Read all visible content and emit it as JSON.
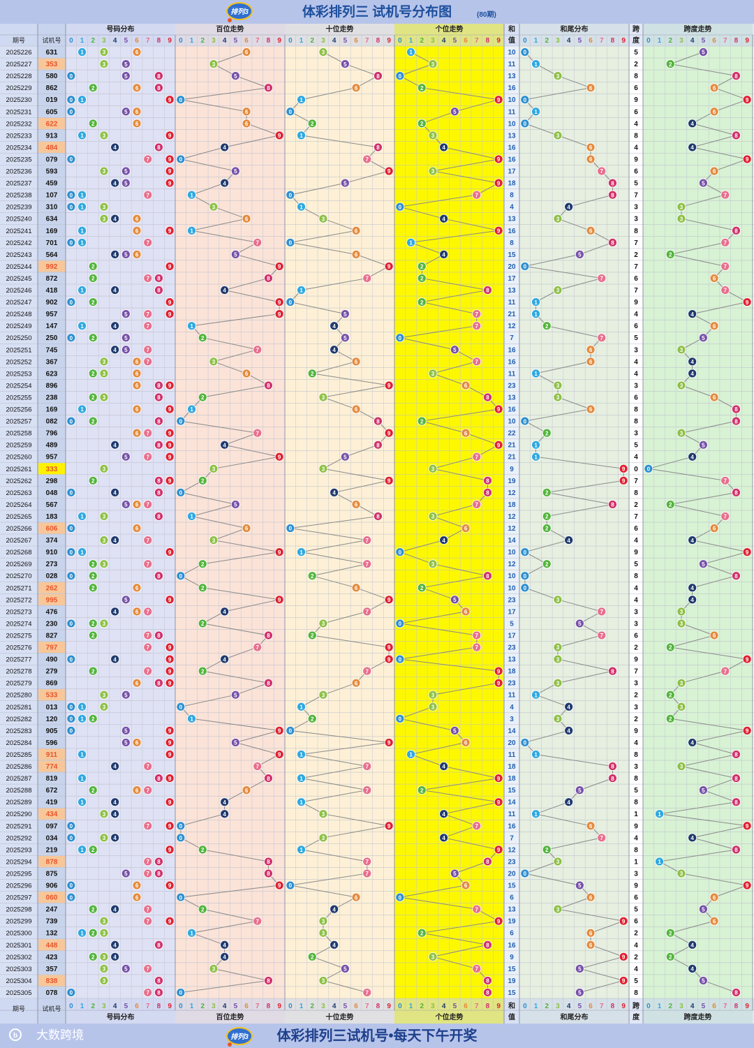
{
  "title": "体彩排列三 试机号分布图",
  "title_badge": "(80期)",
  "logo_text": "排列3",
  "footer_brand": "大数跨境",
  "footer_text": "体彩排列三试机号•每天下午开奖",
  "headers": {
    "period": "期号",
    "trial": "试机号",
    "dist": "号码分布",
    "hundreds": "百位走势",
    "tens": "十位走势",
    "units": "个位走势",
    "sum_top": "和",
    "sum_bottom": "值",
    "sumtail": "和尾分布",
    "span_top": "跨",
    "span_bottom": "度",
    "spantrend": "跨度走势"
  },
  "digits": [
    "0",
    "1",
    "2",
    "3",
    "4",
    "5",
    "6",
    "7",
    "8",
    "9"
  ],
  "colors": {
    "digit": [
      "#2d8fd0",
      "#2ea8e0",
      "#52b43c",
      "#8dc044",
      "#1f3a6e",
      "#7650a8",
      "#e48a3c",
      "#e86e8c",
      "#d0306a",
      "#e02030"
    ],
    "bg_period": "#d8e0f4",
    "bg_trial": "#c8d4ec",
    "bg_dist": "#dfe1f4",
    "bg_hundreds": "#fbe3d8",
    "bg_tens": "#fdf0d6",
    "bg_units": "#fdf800",
    "bg_sum": "#eaf0f8",
    "bg_sumtail": "#e6efe0",
    "bg_span": "#ffffff",
    "bg_spantrend": "#d8f2d4",
    "header_bg": "#c9d3ee",
    "title_color": "#1d4f9c",
    "highlight_orange": "#f7c79a",
    "highlight_yellow": "#fff200"
  },
  "periods": [
    "2025226",
    "2025227",
    "2025228",
    "2025229",
    "2025230",
    "2025231",
    "2025232",
    "2025233",
    "2025234",
    "2025235",
    "2025236",
    "2025237",
    "2025238",
    "2025239",
    "2025240",
    "2025241",
    "2025242",
    "2025243",
    "2025244",
    "2025245",
    "2025246",
    "2025247",
    "2025248",
    "2025249",
    "2025250",
    "2025251",
    "2025252",
    "2025253",
    "2025254",
    "2025255",
    "2025256",
    "2025257",
    "2025258",
    "2025259",
    "2025260",
    "2025261",
    "2025262",
    "2025263",
    "2025264",
    "2025265",
    "2025266",
    "2025267",
    "2025268",
    "2025269",
    "2025270",
    "2025271",
    "2025272",
    "2025273",
    "2025274",
    "2025275",
    "2025276",
    "2025277",
    "2025278",
    "2025279",
    "2025280",
    "2025281",
    "2025282",
    "2025283",
    "2025284",
    "2025285",
    "2025286",
    "2025287",
    "2025288",
    "2025289",
    "2025290",
    "2025291",
    "2025292",
    "2025293",
    "2025294",
    "2025295",
    "2025296",
    "2025297",
    "2025298",
    "2025299",
    "2025300",
    "2025301",
    "2025302",
    "2025303",
    "2025304",
    "2025305"
  ],
  "trials": [
    "631",
    "353",
    "580",
    "862",
    "019",
    "605",
    "622",
    "913",
    "484",
    "079",
    "593",
    "459",
    "107",
    "310",
    "634",
    "169",
    "701",
    "564",
    "992",
    "872",
    "418",
    "902",
    "957",
    "147",
    "250",
    "745",
    "367",
    "623",
    "896",
    "238",
    "169",
    "082",
    "796",
    "489",
    "957",
    "333",
    "298",
    "048",
    "567",
    "183",
    "606",
    "374",
    "910",
    "273",
    "028",
    "262",
    "995",
    "476",
    "230",
    "827",
    "797",
    "490",
    "279",
    "869",
    "533",
    "013",
    "120",
    "905",
    "596",
    "911",
    "774",
    "819",
    "672",
    "419",
    "434",
    "097",
    "034",
    "219",
    "878",
    "875",
    "906",
    "060",
    "247",
    "739",
    "132",
    "448",
    "423",
    "357",
    "838",
    "078"
  ],
  "chart_data": {
    "type": "table",
    "title": "体彩排列三 试机号分布图",
    "columns": [
      "期号",
      "试机号",
      "号码分布",
      "百位走势",
      "十位走势",
      "个位走势",
      "和值",
      "和尾分布",
      "跨度",
      "跨度走势"
    ],
    "note_source": "trials"
  }
}
